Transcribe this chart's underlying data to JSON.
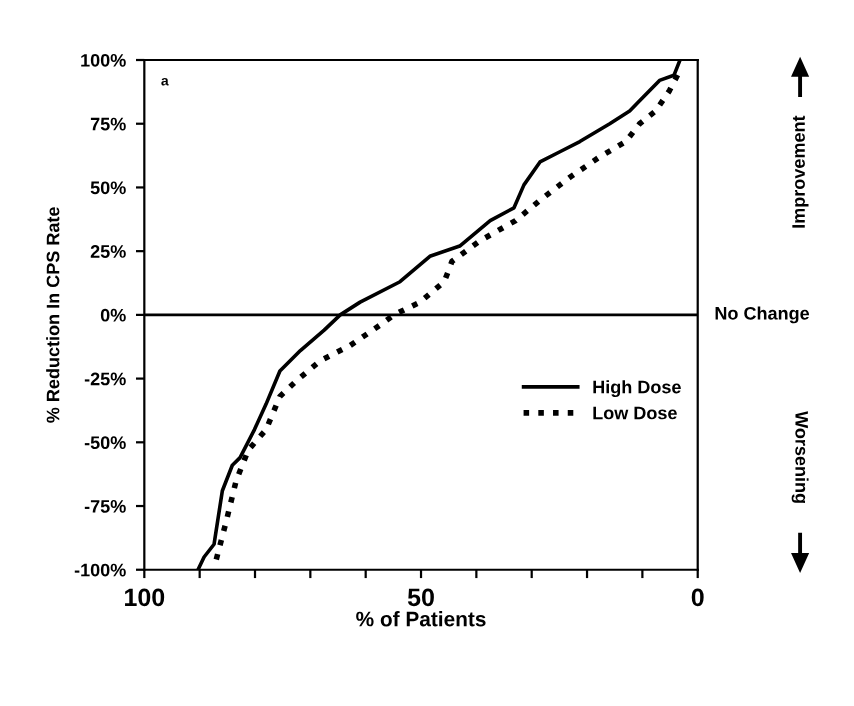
{
  "chart_data": {
    "type": "line",
    "xlabel": "% of Patients",
    "ylabel": "% Reduction In CPS Rate",
    "xlim": [
      100,
      0
    ],
    "ylim": [
      -100,
      100
    ],
    "xticks": [
      100,
      {
        "value": 90,
        "label": null
      },
      {
        "value": 80,
        "label": null
      },
      {
        "value": 70,
        "label": null
      },
      {
        "value": 60,
        "label": null
      },
      50,
      {
        "value": 40,
        "label": null
      },
      {
        "value": 30,
        "label": null
      },
      {
        "value": 20,
        "label": null
      },
      {
        "value": 10,
        "label": null
      },
      0
    ],
    "yticks": [
      {
        "value": -100,
        "label": "-100%"
      },
      {
        "value": -75,
        "label": "-75%"
      },
      {
        "value": -50,
        "label": "-50%"
      },
      {
        "value": -25,
        "label": "-25%"
      },
      {
        "value": 0,
        "label": "0%"
      },
      {
        "value": 25,
        "label": "25%"
      },
      {
        "value": 50,
        "label": "50%"
      },
      {
        "value": 75,
        "label": "75%"
      },
      {
        "value": 100,
        "label": "100%"
      }
    ],
    "grid": false,
    "legend": "right",
    "ref_lines": [
      {
        "axis": "y",
        "value": 0,
        "label": "No Change",
        "color": "#000000"
      }
    ],
    "annotations": [
      "a",
      "Improvement",
      "Worsening"
    ],
    "series": [
      {
        "name": "High Dose",
        "color": "#000000",
        "line_style": "solid",
        "x": [
          90.3,
          89.2,
          87.4,
          85.9,
          84.1,
          82.7,
          80.1,
          78.0,
          75.5,
          71.8,
          67.5,
          64.6,
          61.0,
          53.8,
          48.4,
          43.0,
          37.5,
          33.2,
          31.4,
          28.5,
          24.9,
          21.3,
          15.9,
          12.3,
          10.5,
          6.9,
          4.3,
          3.2
        ],
        "values": [
          -100,
          -95,
          -90,
          -69,
          -59,
          -56,
          -45,
          -35,
          -22,
          -14,
          -6,
          0,
          5,
          13,
          23,
          27,
          37,
          42,
          51,
          60,
          64,
          68,
          75,
          80,
          84,
          92,
          94,
          100
        ]
      },
      {
        "name": "Low Dose",
        "color": "#000000",
        "line_style": "dotted",
        "x": [
          87.0,
          85.2,
          83.4,
          81.2,
          78.0,
          75.5,
          72.6,
          68.2,
          62.8,
          57.4,
          54.9,
          50.2,
          45.8,
          44.4,
          39.4,
          32.9,
          28.5,
          23.1,
          17.7,
          13.0,
          10.5,
          7.6,
          5.1,
          3.2
        ],
        "values": [
          -96,
          -81,
          -65,
          -53,
          -45,
          -32,
          -26,
          -18,
          -12,
          -4,
          0,
          5,
          13,
          21,
          29,
          37,
          45,
          54,
          62,
          68,
          75,
          80,
          88,
          96
        ]
      }
    ]
  }
}
